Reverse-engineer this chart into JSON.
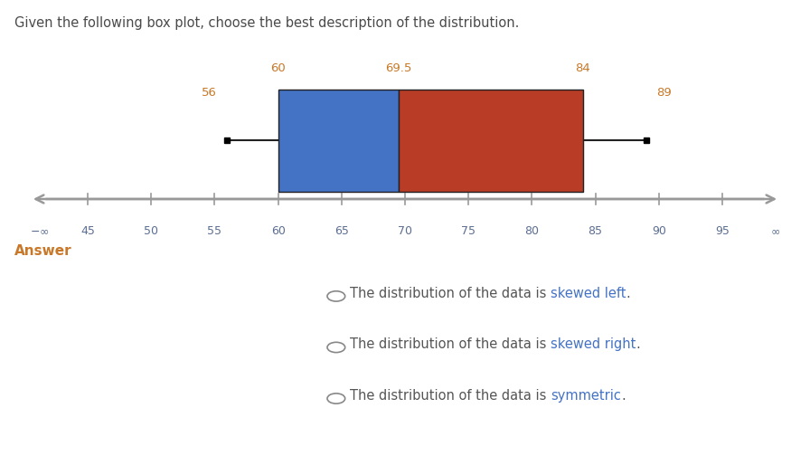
{
  "title_text": "Given the following box plot, choose the best description of the distribution.",
  "title_color": "#4a4a4a",
  "title_fontsize": 10.5,
  "whisker_min": 56,
  "q1": 60,
  "median": 69.5,
  "q3": 84,
  "whisker_max": 89,
  "axis_min": 40,
  "axis_max": 100,
  "axis_ticks": [
    45,
    50,
    55,
    60,
    65,
    70,
    75,
    80,
    85,
    90,
    95
  ],
  "tick_color": "#5b6e91",
  "box_color_left": "#4472c4",
  "box_color_right": "#b83c26",
  "box_edge_color": "#222222",
  "whisker_color": "#222222",
  "label_color": "#c87828",
  "axis_line_color": "#999999",
  "answer_label": "Answer",
  "answer_color": "#c87828",
  "answer_fontsize": 11,
  "option_text_color": "#555555",
  "option_keyword_color": "#4472c4",
  "option_fontsize": 10.5,
  "options": [
    {
      "before": "The distribution of the data is ",
      "keyword": "skewed left",
      "after": "."
    },
    {
      "before": "The distribution of the data is ",
      "keyword": "skewed right",
      "after": "."
    },
    {
      "before": "The distribution of the data is ",
      "keyword": "symmetric",
      "after": "."
    }
  ],
  "divider_color": "#cccccc",
  "background_color": "#ffffff"
}
